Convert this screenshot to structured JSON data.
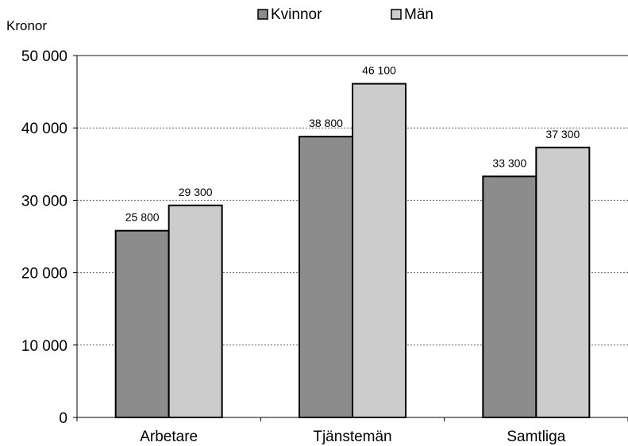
{
  "chart_data": {
    "type": "bar",
    "unit_label": "Kronor",
    "categories": [
      "Arbetare",
      "Tjänstemän",
      "Samtliga"
    ],
    "series": [
      {
        "name": "Kvinnor",
        "color": "#8c8c8c",
        "values": [
          25800,
          38800,
          33300
        ],
        "labels": [
          "25 800",
          "38 800",
          "33 300"
        ]
      },
      {
        "name": "Män",
        "color": "#cccccc",
        "values": [
          29300,
          46100,
          37300
        ],
        "labels": [
          "29 300",
          "46 100",
          "37 300"
        ]
      }
    ],
    "ylim": [
      0,
      50000
    ],
    "yticks": [
      0,
      10000,
      20000,
      30000,
      40000,
      50000
    ],
    "ytick_labels": [
      "0",
      "10 000",
      "20 000",
      "30 000",
      "40 000",
      "50 000"
    ],
    "grid": true,
    "legend_position": "top-center"
  }
}
